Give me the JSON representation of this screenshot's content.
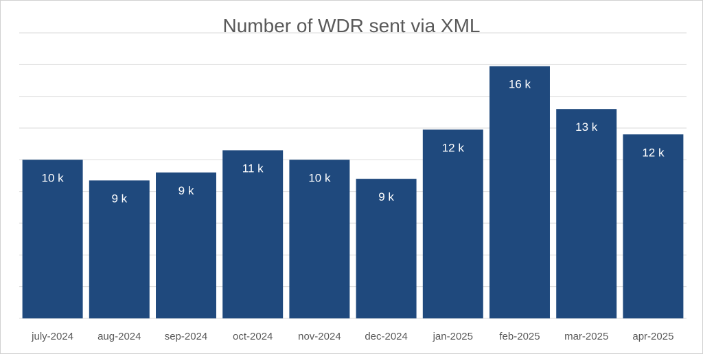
{
  "chart_data": {
    "type": "bar",
    "title": "Number of WDR sent via XML",
    "xlabel": "",
    "ylabel": "",
    "ylim": [
      0,
      18000
    ],
    "grid": true,
    "categories": [
      "july-2024",
      "aug-2024",
      "sep-2024",
      "oct-2024",
      "nov-2024",
      "dec-2024",
      "jan-2025",
      "feb-2025",
      "mar-2025",
      "apr-2025"
    ],
    "values": [
      10000,
      8700,
      9200,
      10600,
      10000,
      8800,
      11900,
      15900,
      13200,
      11600
    ],
    "data_labels": [
      "10 k",
      "9 k",
      "9 k",
      "11 k",
      "10 k",
      "9 k",
      "12 k",
      "16 k",
      "13 k",
      "12 k"
    ],
    "bar_color": "#1F497D",
    "grid_color": "#D9D9D9"
  }
}
